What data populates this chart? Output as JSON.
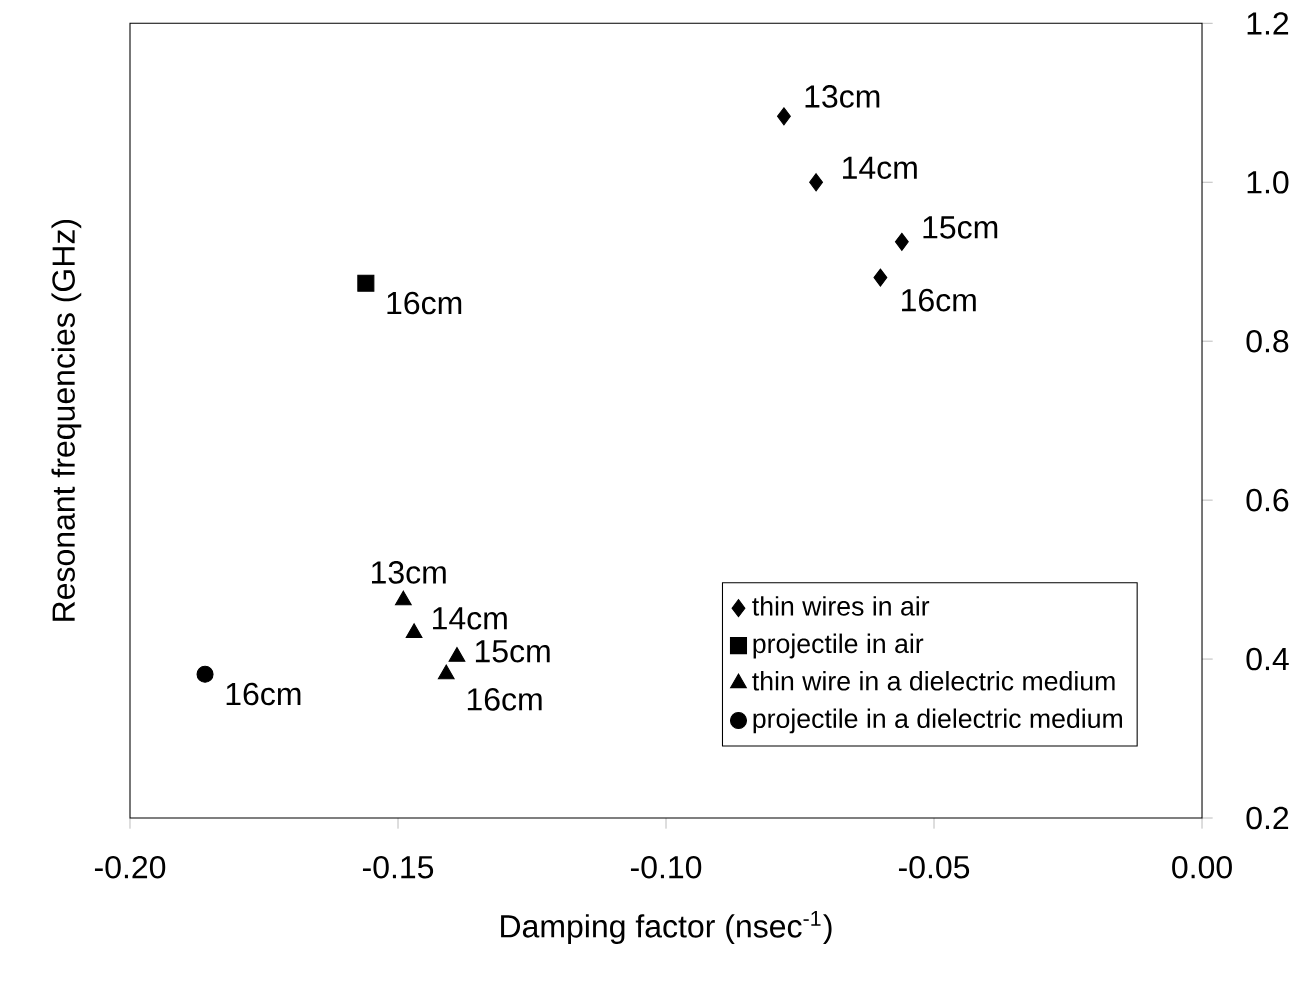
{
  "chart_data": {
    "type": "scatter",
    "xlabel": "Damping factor (nsec$^{-1}$)",
    "ylabel": "Resonant frequencies (GHz)",
    "xlim": [
      -0.2,
      0.0
    ],
    "xticks": [
      {
        "value": -0.2,
        "label": "-0.20"
      },
      {
        "value": -0.15,
        "label": "-0.15"
      },
      {
        "value": -0.1,
        "label": "-0.10"
      },
      {
        "value": -0.05,
        "label": "-0.05"
      },
      {
        "value": 0.0,
        "label": "0.00"
      }
    ],
    "ylim": [
      0.2,
      1.2
    ],
    "yticks": [
      0.2,
      0.4,
      0.6,
      0.8,
      {
        "value": 1.0,
        "label": "1.0"
      },
      1.2
    ],
    "grid": false,
    "legend": "bottom right",
    "series": [
      {
        "name": "thin wires in air",
        "color": "#000000",
        "marker": "diamond",
        "x": [
          -0.078,
          -0.072,
          -0.056,
          -0.06
        ],
        "values": [
          1.083,
          1.0,
          0.925,
          0.88
        ]
      },
      {
        "name": "projectile in air",
        "color": "#000000",
        "marker": "square",
        "x": [
          -0.156
        ],
        "values": [
          0.873
        ]
      },
      {
        "name": "thin wire in a dielectric medium",
        "color": "#000000",
        "marker": "triangle",
        "x": [
          -0.149,
          -0.147,
          -0.139,
          -0.141
        ],
        "values": [
          0.474,
          0.433,
          0.403,
          0.381
        ]
      },
      {
        "name": "projectile in a dielectric medium",
        "color": "#000000",
        "marker": "circle",
        "x": [
          -0.186
        ],
        "values": [
          0.381
        ]
      }
    ],
    "annotations": [
      {
        "text": "13cm",
        "x": -0.078,
        "y": 1.083
      },
      {
        "text": "14cm",
        "x": -0.072,
        "y": 1.0
      },
      {
        "text": "15cm",
        "x": -0.056,
        "y": 0.925
      },
      {
        "text": "16cm",
        "x": -0.06,
        "y": 0.88
      },
      {
        "text": "16cm",
        "x": -0.156,
        "y": 0.873
      },
      {
        "text": "13cm",
        "x": -0.149,
        "y": 0.474
      },
      {
        "text": "14cm",
        "x": -0.147,
        "y": 0.433
      },
      {
        "text": "15cm",
        "x": -0.139,
        "y": 0.403
      },
      {
        "text": "16cm",
        "x": -0.141,
        "y": 0.381
      },
      {
        "text": "16cm",
        "x": -0.186,
        "y": 0.381
      }
    ]
  }
}
